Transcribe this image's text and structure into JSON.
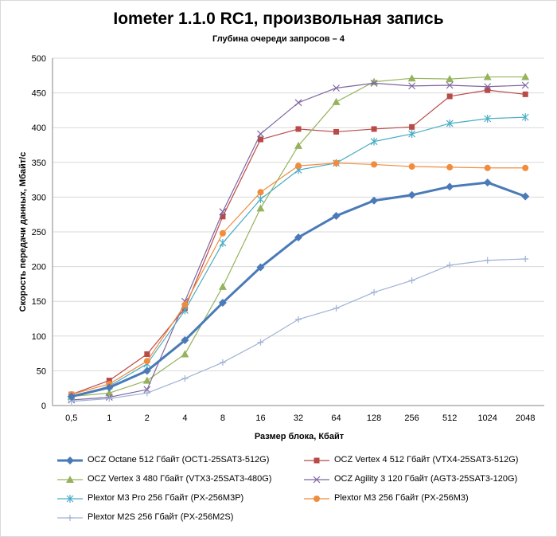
{
  "chart_data": {
    "type": "line",
    "title": "Iometer 1.1.0 RC1, произвольная запись",
    "subtitle": "Глубина очереди запросов – 4",
    "xlabel": "Размер блока, Кбайт",
    "ylabel": "Скорость передачи данных, Мбайт/с",
    "categories": [
      "0,5",
      "1",
      "2",
      "4",
      "8",
      "16",
      "32",
      "64",
      "128",
      "256",
      "512",
      "1024",
      "2048"
    ],
    "ylim": [
      0,
      500
    ],
    "yticks": [
      0,
      50,
      100,
      150,
      200,
      250,
      300,
      350,
      400,
      450,
      500
    ],
    "grid": true,
    "legend_position": "bottom",
    "series": [
      {
        "name": "OCZ Octane 512 Гбайт (OCT1-25SAT3-512G)",
        "color": "#4a7ab7",
        "marker": "diamond",
        "bold": true,
        "values": [
          13,
          26,
          50,
          94,
          148,
          199,
          242,
          273,
          295,
          303,
          315,
          321,
          301
        ]
      },
      {
        "name": "OCZ Vertex  4 512 Гбайт (VTX4-25SAT3-512G)",
        "color": "#b84a47",
        "marker": "square",
        "bold": false,
        "values": [
          16,
          36,
          74,
          140,
          272,
          383,
          398,
          394,
          398,
          401,
          445,
          454,
          448
        ]
      },
      {
        "name": "OCZ Vertex  3 480 Гбайт (VTX3-25SAT3-480G)",
        "color": "#95b35b",
        "marker": "triangle",
        "bold": false,
        "values": [
          13,
          18,
          36,
          74,
          171,
          284,
          374,
          437,
          466,
          471,
          470,
          473,
          473
        ]
      },
      {
        "name": "OCZ Agility 3 120 Гбайт (AGT3-25SAT3-120G)",
        "color": "#7e66a0",
        "marker": "x",
        "bold": false,
        "values": [
          8,
          12,
          23,
          150,
          279,
          391,
          436,
          457,
          464,
          460,
          461,
          459,
          461
        ]
      },
      {
        "name": "Plextor M3 Pro 256 Гбайт (PX-256M3P)",
        "color": "#4bacc6",
        "marker": "asterisk",
        "bold": false,
        "values": [
          12,
          28,
          60,
          137,
          234,
          297,
          339,
          349,
          380,
          391,
          406,
          413,
          415
        ]
      },
      {
        "name": "Plextor M3 256 Гбайт (PX-256M3)",
        "color": "#f08c3c",
        "marker": "circle",
        "bold": false,
        "values": [
          16,
          31,
          64,
          145,
          248,
          307,
          345,
          349,
          347,
          344,
          343,
          342,
          342
        ]
      },
      {
        "name": "Plextor M2S 256 Гбайт (PX-256M2S)",
        "color": "#9fb2d6",
        "marker": "plus",
        "bold": false,
        "values": [
          6,
          10,
          18,
          39,
          62,
          91,
          124,
          140,
          163,
          180,
          202,
          209,
          211
        ]
      }
    ]
  }
}
